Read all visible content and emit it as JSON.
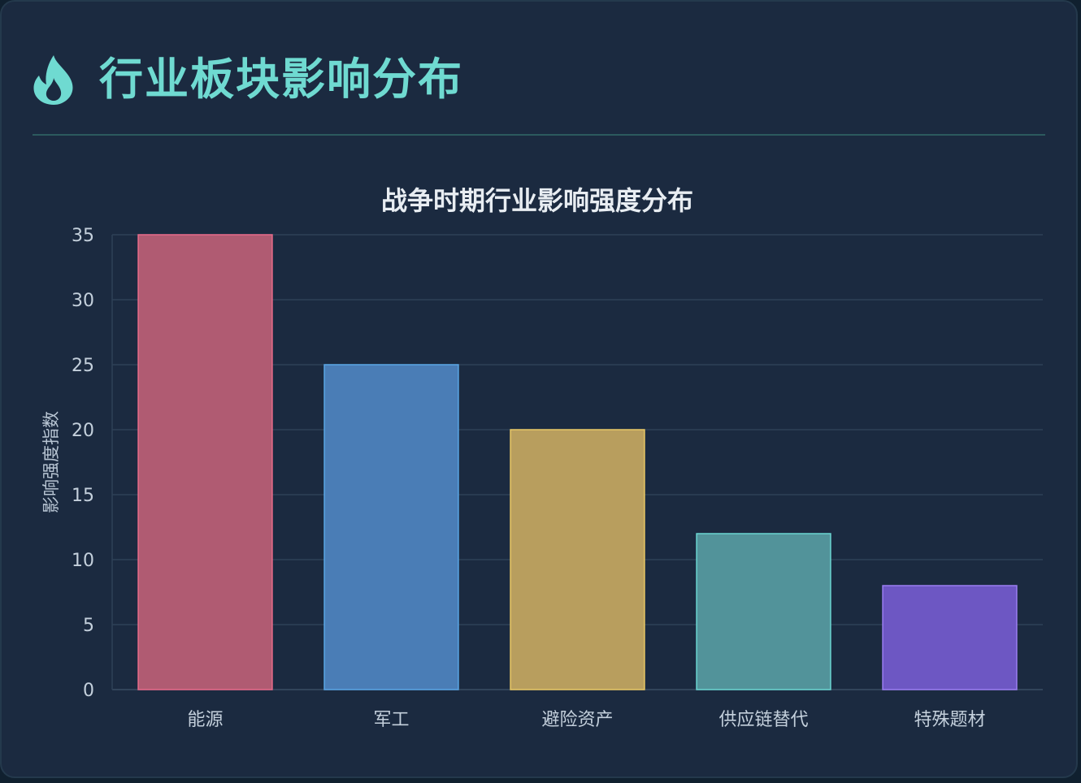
{
  "header": {
    "title": "行业板块影响分布",
    "icon": "flame-icon",
    "accent": "#6fdad1"
  },
  "chart_data": {
    "type": "bar",
    "title": "战争时期行业影响强度分布",
    "xlabel": "",
    "ylabel": "影响强度指数",
    "categories": [
      "能源",
      "军工",
      "避险资产",
      "供应链替代",
      "特殊题材"
    ],
    "values": [
      35,
      25,
      20,
      12,
      8
    ],
    "ylim": [
      0,
      35
    ],
    "yticks": [
      "0",
      "5",
      "10",
      "15",
      "20",
      "25",
      "30",
      "35"
    ],
    "grid": true,
    "legend": "none",
    "colors": [
      "#b05b72",
      "#4a7db6",
      "#b89e5e",
      "#52939a",
      "#6d57c3"
    ],
    "edge_colors": [
      "#e86b8a",
      "#5aa6e6",
      "#e9c865",
      "#6bd6d2",
      "#9b7ef2"
    ]
  }
}
